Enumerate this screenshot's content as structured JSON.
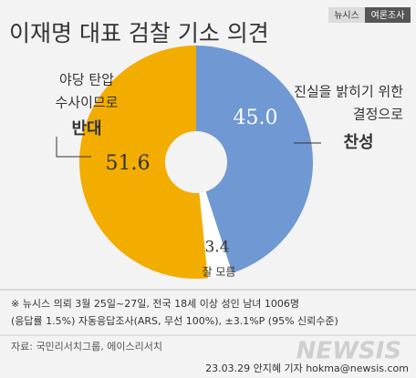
{
  "header": {
    "title": "이재명 대표 검찰 기소 의견",
    "badge": [
      "뉴시스",
      "여론조사"
    ]
  },
  "chart_data": {
    "type": "donut",
    "categories": [
      "찬성",
      "잘 모름",
      "반대"
    ],
    "descriptions": [
      [
        "진실을 밝히기 위한",
        "결정으로"
      ],
      null,
      [
        "야당 탄압",
        "수사이므로"
      ]
    ],
    "values": [
      45.0,
      3.4,
      51.6
    ],
    "value_labels": [
      "45.0",
      "3.4",
      "51.6"
    ],
    "colors": [
      "#7098d2",
      "#ffffff",
      "#f2ad00"
    ]
  },
  "footer": {
    "notes": [
      "※ 뉴시스 의뢰 3월 25일~27일, 전국 18세 이상 성인 남녀 1006명",
      "(응답률 1.5%) 자동응답조사(ARS, 무선 100%), ±3.1%P (95% 신뢰수준)"
    ],
    "source": "자료: 국민리서치그룹, 에이스리서치",
    "watermark": "NEWSIS",
    "credit": "23.03.29 안지혜 기자 hokma@newsis.com"
  }
}
